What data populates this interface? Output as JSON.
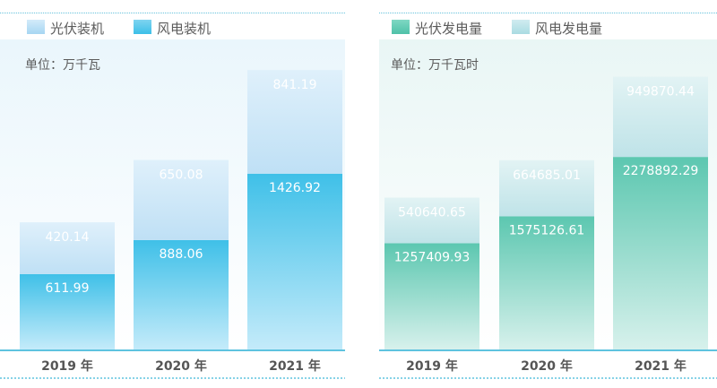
{
  "colors": {
    "left_wind": "#bfe0f5",
    "left_solar": "#3fc0e8",
    "right_wind": "#bfe3e8",
    "right_solar": "#5cc7b0"
  },
  "legend_left": {
    "item1": "光伏装机",
    "item2": "风电装机"
  },
  "legend_right": {
    "item1": "光伏发电量",
    "item2": "风电发电量"
  },
  "unit_left": "单位：万千瓦",
  "unit_right": "单位：万千瓦时",
  "chart_data": [
    {
      "type": "bar",
      "stacked": true,
      "categories": [
        "2019 年",
        "2020 年",
        "2021 年"
      ],
      "unit": "单位：万千瓦",
      "legend": [
        "光伏装机",
        "风电装机"
      ],
      "ylim": [
        0,
        2400
      ],
      "series": [
        {
          "values": [
            611.99,
            888.06,
            1426.92
          ]
        },
        {
          "values": [
            420.14,
            650.08,
            841.19
          ]
        }
      ]
    },
    {
      "type": "bar",
      "stacked": true,
      "categories": [
        "2019 年",
        "2020 年",
        "2021 年"
      ],
      "unit": "单位：万千瓦时",
      "legend": [
        "光伏发电量",
        "风电发电量"
      ],
      "ylim": [
        0,
        3500000
      ],
      "series": [
        {
          "values": [
            1257409.93,
            1575126.61,
            2278892.29
          ]
        },
        {
          "values": [
            540640.65,
            664685.01,
            949870.44
          ]
        }
      ]
    }
  ]
}
